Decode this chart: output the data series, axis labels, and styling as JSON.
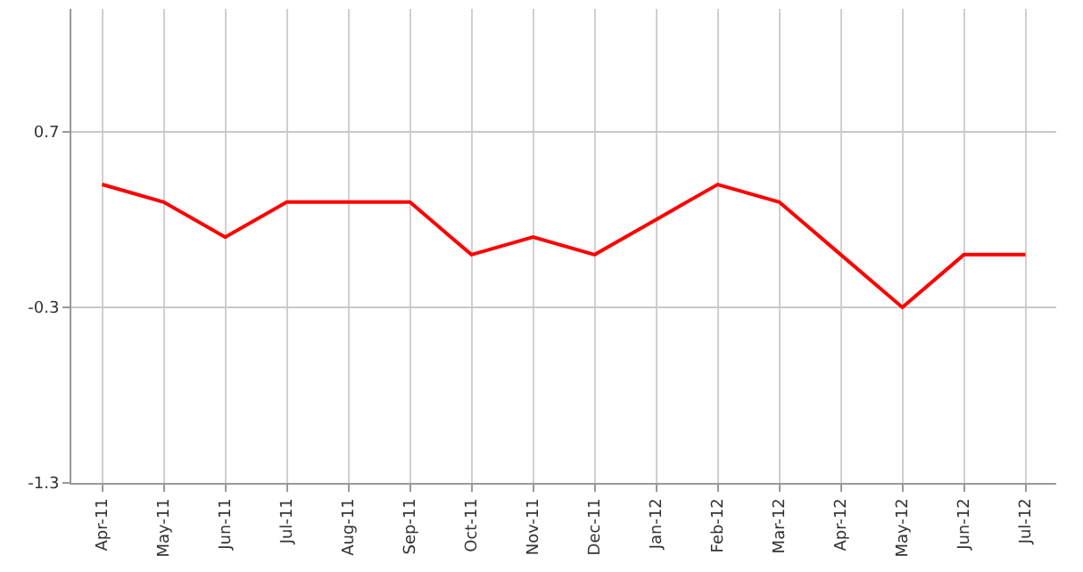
{
  "chart_data": {
    "type": "line",
    "categories": [
      "Apr-11",
      "May-11",
      "Jun-11",
      "Jul-11",
      "Aug-11",
      "Sep-11",
      "Oct-11",
      "Nov-11",
      "Dec-11",
      "Jan-12",
      "Feb-12",
      "Mar-12",
      "Apr-12",
      "May-12",
      "Jun-12",
      "Jul-12"
    ],
    "series": [
      {
        "color": "#ff0000",
        "values": [
          0.4,
          0.3,
          0.1,
          0.3,
          0.3,
          0.3,
          0.0,
          0.1,
          0.0,
          0.2,
          0.4,
          0.3,
          0.0,
          -0.3,
          0.0,
          0.0
        ]
      }
    ],
    "ylim": [
      -1.3,
      1.4
    ],
    "yticks": [
      0.7,
      -0.3,
      -1.3
    ],
    "grid": true,
    "marker": "none",
    "line_style": "solid"
  }
}
